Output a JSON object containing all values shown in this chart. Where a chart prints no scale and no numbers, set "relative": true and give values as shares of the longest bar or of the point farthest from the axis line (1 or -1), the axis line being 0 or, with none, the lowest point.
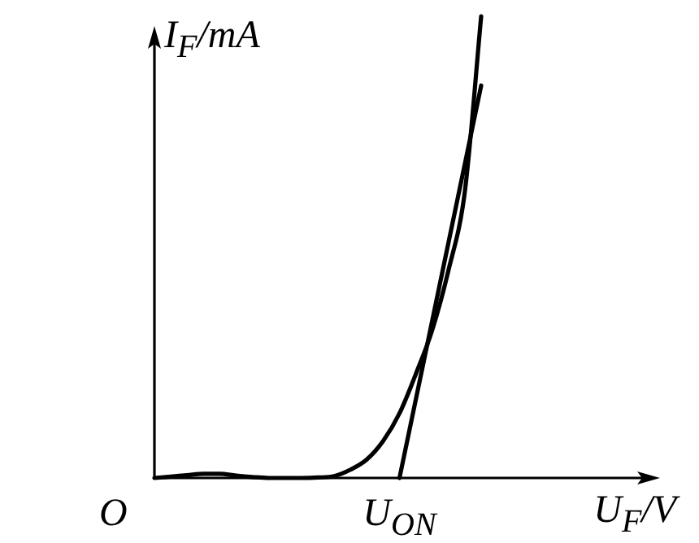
{
  "chart_data": {
    "type": "line",
    "relative": true,
    "xlabel": "U$_{F}$/V",
    "ylabel": "I$_{F}$/mA",
    "tick_labels": false,
    "legend": false,
    "marker": "none",
    "line_style": "solid",
    "categories": [
      null,
      null,
      null,
      null,
      null,
      null,
      null,
      null,
      null,
      null,
      null,
      null,
      null,
      null,
      null,
      null,
      null,
      null,
      null,
      null,
      null
    ],
    "series": [
      {
        "color": "#000000",
        "values": [
          0,
          0.003,
          0.006,
          0.009,
          0.009,
          0.005,
          0.002,
          0,
          0,
          0,
          0.001,
          0.004,
          0.018,
          0.04,
          0.08,
          0.14,
          0.225,
          0.32,
          0.45,
          0.62,
          1
        ]
      },
      {
        "color": "#000000",
        "values": [
          null,
          null,
          null,
          null,
          null,
          null,
          null,
          null,
          null,
          null,
          null,
          null,
          null,
          null,
          null,
          0,
          null,
          null,
          null,
          null,
          0.85
        ]
      }
    ],
    "annotations": [
      "O",
      "U$_{ON}$"
    ]
  }
}
